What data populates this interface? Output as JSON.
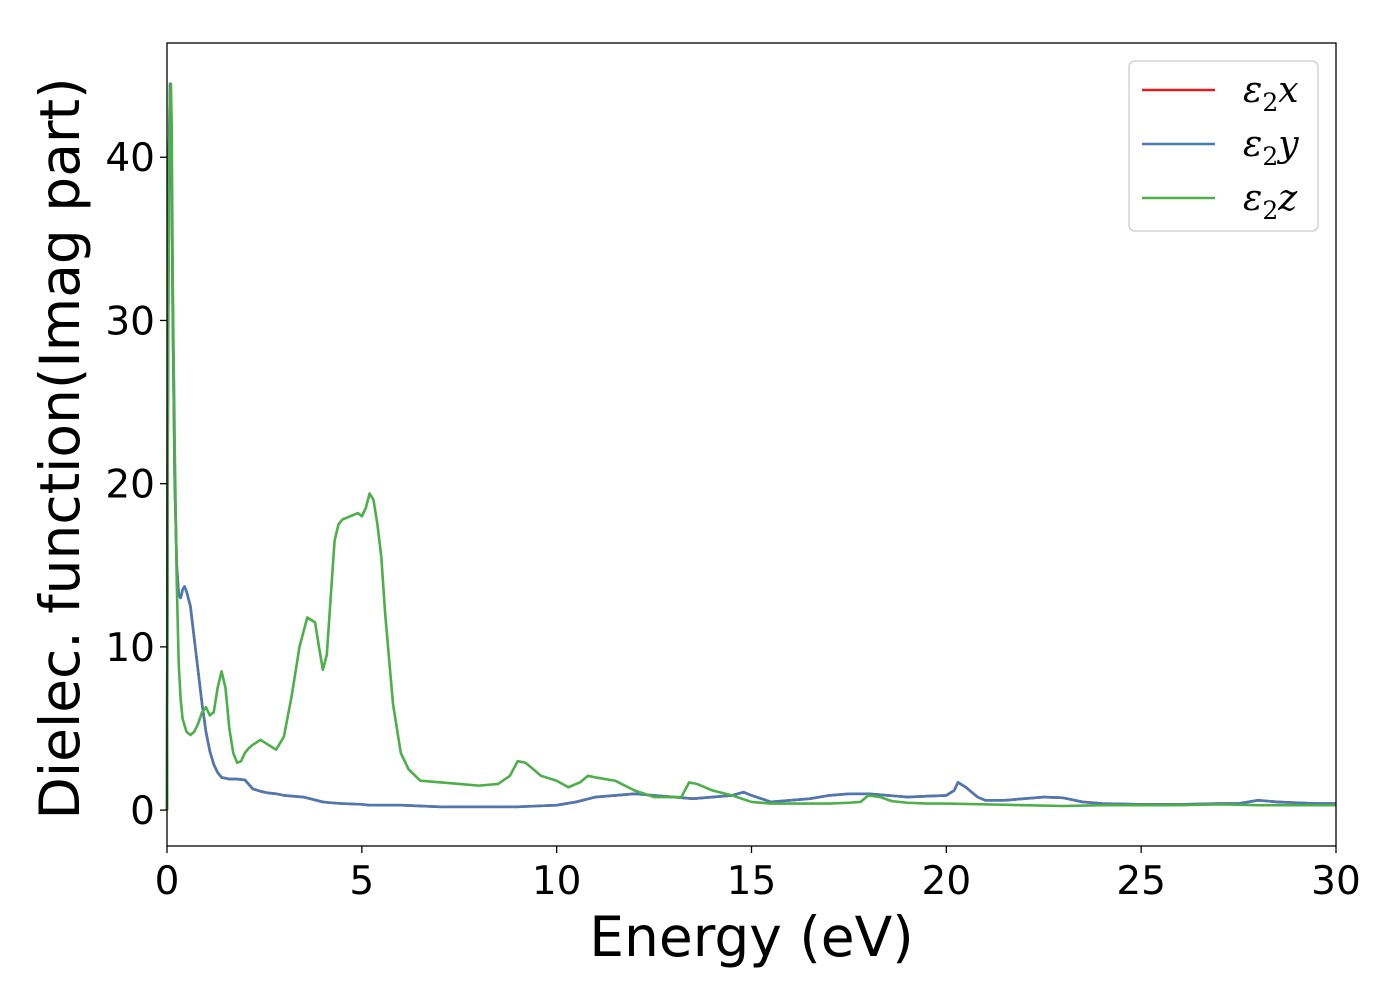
{
  "chart_data": {
    "type": "line",
    "title": "",
    "xlabel": "Energy (eV)",
    "ylabel": "Dielec. function(Imag part)",
    "xlim": [
      0,
      30
    ],
    "ylim": [
      -2.2,
      47
    ],
    "xticks": [
      0,
      5,
      10,
      15,
      20,
      25,
      30
    ],
    "yticks": [
      0,
      10,
      20,
      30,
      40
    ],
    "grid": false,
    "legend_position": "top-right",
    "series": [
      {
        "name": "ε2x",
        "legend_base": "ε",
        "legend_sub": "2",
        "legend_axis": "x",
        "color": "#e41a1c",
        "x": [
          0,
          0.02,
          0.05,
          0.08,
          0.1,
          0.12,
          0.15,
          0.2,
          0.25,
          0.3,
          0.35,
          0.4,
          0.45,
          0.5,
          0.6,
          0.7,
          0.8,
          0.9,
          1.0,
          1.1,
          1.2,
          1.3,
          1.4,
          1.5,
          1.6,
          1.8,
          2.0,
          2.2,
          2.4,
          2.6,
          2.8,
          3.0,
          3.5,
          4.0,
          4.2,
          4.5,
          5.0,
          5.2,
          5.5,
          6.0,
          7.0,
          8.0,
          9.0,
          9.5,
          10.0,
          10.5,
          11.0,
          12.0,
          12.5,
          13.0,
          13.5,
          14.0,
          14.5,
          14.8,
          15.0,
          15.5,
          16.0,
          16.5,
          17.0,
          17.5,
          18.0,
          18.5,
          19.0,
          19.5,
          20.0,
          20.2,
          20.3,
          20.5,
          20.8,
          21.0,
          21.5,
          22.0,
          22.5,
          23.0,
          23.5,
          24.0,
          25.0,
          26.0,
          27.0,
          27.5,
          28.0,
          28.5,
          29.0,
          29.5,
          30.0
        ],
        "y": [
          0,
          25,
          40,
          44.5,
          43,
          38,
          30,
          20,
          15,
          13.2,
          13.0,
          13.5,
          13.7,
          13.4,
          12.5,
          10.5,
          8.5,
          6.5,
          4.8,
          3.6,
          2.8,
          2.3,
          2.0,
          1.95,
          1.9,
          1.9,
          1.85,
          1.3,
          1.15,
          1.05,
          1.0,
          0.9,
          0.8,
          0.5,
          0.45,
          0.4,
          0.35,
          0.3,
          0.3,
          0.3,
          0.2,
          0.2,
          0.2,
          0.25,
          0.3,
          0.5,
          0.8,
          1.0,
          0.9,
          0.8,
          0.7,
          0.8,
          0.9,
          1.1,
          0.9,
          0.5,
          0.6,
          0.7,
          0.9,
          1.0,
          1.0,
          0.9,
          0.8,
          0.85,
          0.9,
          1.2,
          1.7,
          1.4,
          0.8,
          0.6,
          0.6,
          0.7,
          0.8,
          0.75,
          0.5,
          0.4,
          0.35,
          0.35,
          0.4,
          0.4,
          0.6,
          0.5,
          0.45,
          0.4,
          0.4
        ]
      },
      {
        "name": "ε2y",
        "legend_base": "ε",
        "legend_sub": "2",
        "legend_axis": "y",
        "color": "#4a7ab3",
        "x": [
          0,
          0.02,
          0.05,
          0.08,
          0.1,
          0.12,
          0.15,
          0.2,
          0.25,
          0.3,
          0.35,
          0.4,
          0.45,
          0.5,
          0.6,
          0.7,
          0.8,
          0.9,
          1.0,
          1.1,
          1.2,
          1.3,
          1.4,
          1.5,
          1.6,
          1.8,
          2.0,
          2.2,
          2.4,
          2.6,
          2.8,
          3.0,
          3.5,
          4.0,
          4.2,
          4.5,
          5.0,
          5.2,
          5.5,
          6.0,
          7.0,
          8.0,
          9.0,
          9.5,
          10.0,
          10.5,
          11.0,
          12.0,
          12.5,
          13.0,
          13.5,
          14.0,
          14.5,
          14.8,
          15.0,
          15.5,
          16.0,
          16.5,
          17.0,
          17.5,
          18.0,
          18.5,
          19.0,
          19.5,
          20.0,
          20.2,
          20.3,
          20.5,
          20.8,
          21.0,
          21.5,
          22.0,
          22.5,
          23.0,
          23.5,
          24.0,
          25.0,
          26.0,
          27.0,
          27.5,
          28.0,
          28.5,
          29.0,
          29.5,
          30.0
        ],
        "y": [
          0,
          25,
          40,
          44.5,
          43,
          38,
          30,
          20,
          15,
          13.2,
          13.0,
          13.5,
          13.7,
          13.4,
          12.5,
          10.5,
          8.5,
          6.5,
          4.8,
          3.6,
          2.8,
          2.3,
          2.0,
          1.95,
          1.9,
          1.9,
          1.85,
          1.3,
          1.15,
          1.05,
          1.0,
          0.9,
          0.8,
          0.5,
          0.45,
          0.4,
          0.35,
          0.3,
          0.3,
          0.3,
          0.2,
          0.2,
          0.2,
          0.25,
          0.3,
          0.5,
          0.8,
          1.0,
          0.9,
          0.8,
          0.7,
          0.8,
          0.9,
          1.1,
          0.9,
          0.5,
          0.6,
          0.7,
          0.9,
          1.0,
          1.0,
          0.9,
          0.8,
          0.85,
          0.9,
          1.2,
          1.7,
          1.4,
          0.8,
          0.6,
          0.6,
          0.7,
          0.8,
          0.75,
          0.5,
          0.4,
          0.35,
          0.35,
          0.4,
          0.4,
          0.6,
          0.5,
          0.45,
          0.4,
          0.4
        ]
      },
      {
        "name": "ε2z",
        "legend_base": "ε",
        "legend_sub": "2",
        "legend_axis": "z",
        "color": "#4daf4a",
        "x": [
          0,
          0.02,
          0.05,
          0.08,
          0.1,
          0.12,
          0.15,
          0.2,
          0.25,
          0.3,
          0.35,
          0.4,
          0.5,
          0.6,
          0.7,
          0.8,
          0.9,
          1.0,
          1.1,
          1.2,
          1.3,
          1.4,
          1.5,
          1.6,
          1.7,
          1.8,
          1.9,
          2.0,
          2.1,
          2.2,
          2.4,
          2.6,
          2.8,
          3.0,
          3.2,
          3.4,
          3.6,
          3.8,
          3.9,
          4.0,
          4.1,
          4.2,
          4.3,
          4.4,
          4.5,
          4.7,
          4.9,
          5.0,
          5.1,
          5.2,
          5.3,
          5.4,
          5.5,
          5.6,
          5.8,
          6.0,
          6.2,
          6.5,
          7.0,
          7.5,
          8.0,
          8.5,
          8.8,
          9.0,
          9.2,
          9.4,
          9.6,
          10.0,
          10.3,
          10.6,
          10.8,
          11.0,
          11.5,
          12.0,
          12.5,
          13.0,
          13.2,
          13.4,
          13.6,
          14.0,
          14.5,
          15.0,
          15.5,
          16.0,
          17.0,
          17.5,
          17.8,
          18.0,
          18.3,
          18.6,
          19.0,
          19.5,
          20.0,
          21.0,
          22.0,
          23.0,
          24.0,
          25.0,
          26.0,
          27.0,
          28.0,
          29.0,
          30.0
        ],
        "y": [
          0,
          22,
          38,
          44,
          44.5,
          42,
          32,
          22,
          14,
          9,
          6.8,
          5.6,
          4.8,
          4.6,
          4.8,
          5.3,
          6.0,
          6.3,
          5.8,
          6.0,
          7.5,
          8.5,
          7.5,
          5.0,
          3.5,
          2.9,
          3.0,
          3.5,
          3.8,
          4.0,
          4.3,
          4.0,
          3.7,
          4.5,
          7.0,
          10.0,
          11.8,
          11.5,
          10.0,
          8.6,
          9.5,
          13.0,
          16.5,
          17.5,
          17.8,
          18.0,
          18.2,
          18.0,
          18.5,
          19.4,
          19.0,
          17.5,
          15.5,
          12.0,
          6.5,
          3.5,
          2.5,
          1.8,
          1.7,
          1.6,
          1.5,
          1.6,
          2.1,
          3.0,
          2.9,
          2.5,
          2.1,
          1.8,
          1.4,
          1.7,
          2.1,
          2.0,
          1.8,
          1.2,
          0.8,
          0.8,
          0.8,
          1.7,
          1.6,
          1.2,
          0.9,
          0.5,
          0.4,
          0.4,
          0.4,
          0.45,
          0.5,
          0.9,
          0.8,
          0.55,
          0.45,
          0.4,
          0.4,
          0.35,
          0.3,
          0.25,
          0.3,
          0.3,
          0.3,
          0.35,
          0.3,
          0.3,
          0.3
        ]
      }
    ]
  }
}
